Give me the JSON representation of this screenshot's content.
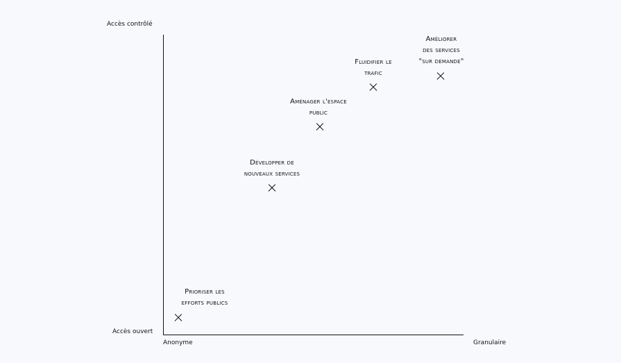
{
  "axes": {
    "y_top_label": "Accès contrôlé",
    "y_bottom_label": "Accès ouvert",
    "x_left_label": "Anonyme",
    "x_right_label": "Granulaire"
  },
  "points": [
    {
      "id": "prioriser",
      "label": "Prioriser les\nefforts publics"
    },
    {
      "id": "developper",
      "label": "Développer de\nnouveaux services"
    },
    {
      "id": "amenager",
      "label": "Aménager l'espace\npublic"
    },
    {
      "id": "fluidifier",
      "label": "Fluidifier le\ntrafic"
    },
    {
      "id": "ameliorer",
      "label": "Améliorer\ndes services\n\"sur demande\""
    }
  ]
}
